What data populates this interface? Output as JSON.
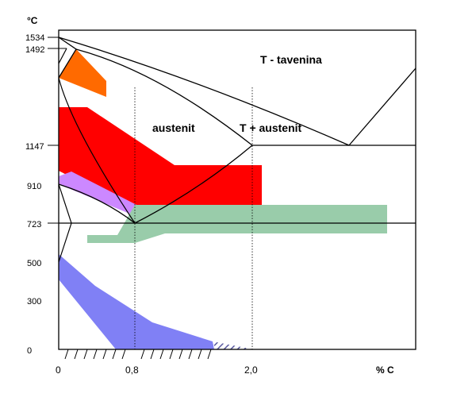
{
  "axis": {
    "y_unit": "°C",
    "x_unit": "% C",
    "y_ticks": [
      "1534",
      "1492",
      "1147",
      "910",
      "723",
      "500",
      "300",
      "0"
    ],
    "x_ticks": [
      "0",
      "0,8",
      "2,0"
    ]
  },
  "regions": {
    "melt": "T - tavenina",
    "austenite": "austenit",
    "melt_austenite": "T + austenit"
  },
  "colors": {
    "orange": "#ff6a00",
    "red": "#ff0000",
    "violet": "#cc88ff",
    "green": "#99ccaa",
    "blue": "#8080f5",
    "line": "#000000"
  }
}
